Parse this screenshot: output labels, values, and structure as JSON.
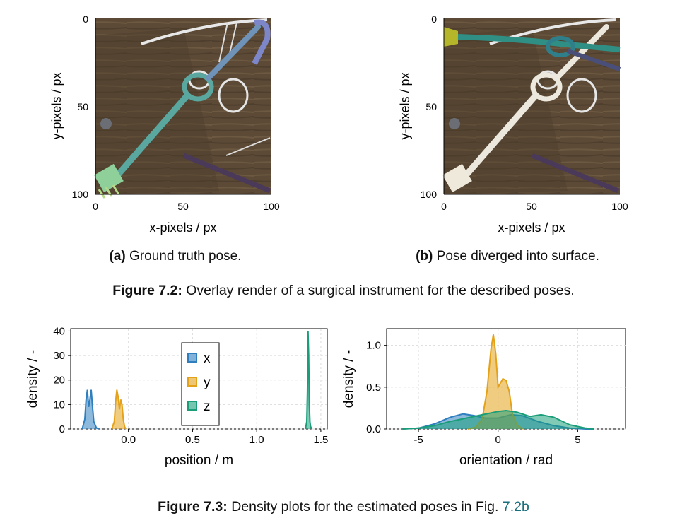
{
  "figure72": {
    "subfig_a": {
      "yticks": [
        "0",
        "50",
        "100"
      ],
      "xticks": [
        "0",
        "50",
        "100"
      ],
      "ylabel": "y-pixels / px",
      "xlabel": "x-pixels / px",
      "caption_tag": "(a)",
      "caption_text": "Ground truth pose."
    },
    "subfig_b": {
      "yticks": [
        "0",
        "50",
        "100"
      ],
      "xticks": [
        "0",
        "50",
        "100"
      ],
      "ylabel": "y-pixels / px",
      "xlabel": "x-pixels / px",
      "caption_tag": "(b)",
      "caption_text": "Pose diverged into surface."
    },
    "caption_label": "Figure 7.2:",
    "caption_text": "Overlay render of a surgical instrument for the described poses."
  },
  "figure73": {
    "caption_label": "Figure 7.3:",
    "caption_text": "Density plots for the estimated poses in Fig.",
    "caption_ref": "7.2b"
  },
  "colors": {
    "x": "#2f7fbf",
    "y": "#e3a21a",
    "z": "#1a9e7a"
  },
  "chart_data": [
    {
      "type": "area",
      "xlabel": "position / m",
      "ylabel": "density / -",
      "xlim": [
        -0.45,
        1.55
      ],
      "ylim": [
        0,
        41
      ],
      "xticks": [
        "0.0",
        "0.5",
        "1.0",
        "1.5"
      ],
      "yticks": [
        "0",
        "10",
        "20",
        "30",
        "40"
      ],
      "grid": true,
      "legend": "center-left",
      "series": [
        {
          "name": "x",
          "x": [
            -0.36,
            -0.34,
            -0.33,
            -0.32,
            -0.31,
            -0.3,
            -0.29,
            -0.28,
            -0.27,
            -0.25,
            -0.23
          ],
          "values": [
            0,
            4,
            12,
            16,
            9,
            12,
            16,
            9,
            3,
            0.5,
            0
          ]
        },
        {
          "name": "y",
          "x": [
            -0.13,
            -0.11,
            -0.1,
            -0.09,
            -0.08,
            -0.07,
            -0.06,
            -0.05,
            -0.04,
            -0.03,
            -0.02
          ],
          "values": [
            0,
            3,
            11,
            16,
            13,
            8,
            12,
            10,
            4,
            1,
            0
          ]
        },
        {
          "name": "z",
          "x": [
            1.38,
            1.39,
            1.395,
            1.4,
            1.405,
            1.41,
            1.415,
            1.42,
            1.43
          ],
          "values": [
            0,
            3,
            15,
            40,
            30,
            10,
            3,
            1,
            0
          ]
        }
      ]
    },
    {
      "type": "area",
      "xlabel": "orientation / rad",
      "ylabel": "density / -",
      "xlim": [
        -7,
        8
      ],
      "ylim": [
        0,
        1.2
      ],
      "xticks": [
        "-5",
        "0",
        "5"
      ],
      "yticks": [
        "0.0",
        "0.5",
        "1.0"
      ],
      "grid": true,
      "series": [
        {
          "name": "x",
          "x": [
            -6,
            -5,
            -4,
            -3,
            -2.2,
            -1.5,
            -0.8,
            0,
            0.8,
            1.5,
            2.5,
            3.5,
            4.5,
            5.5,
            6
          ],
          "values": [
            0,
            0.01,
            0.06,
            0.14,
            0.18,
            0.16,
            0.13,
            0.13,
            0.17,
            0.16,
            0.09,
            0.04,
            0.01,
            0,
            0
          ]
        },
        {
          "name": "y",
          "x": [
            -1.9,
            -1.4,
            -1.0,
            -0.7,
            -0.45,
            -0.3,
            -0.15,
            0,
            0.15,
            0.3,
            0.5,
            0.7,
            0.9,
            1.2,
            1.6
          ],
          "values": [
            0,
            0.02,
            0.12,
            0.45,
            0.95,
            1.13,
            0.9,
            0.5,
            0.55,
            0.6,
            0.58,
            0.45,
            0.18,
            0.04,
            0
          ]
        },
        {
          "name": "z",
          "x": [
            -6,
            -5,
            -4,
            -3,
            -2,
            -1,
            0,
            0.5,
            1.2,
            2,
            2.7,
            3.5,
            4.5,
            5.5,
            6
          ],
          "values": [
            0,
            0.01,
            0.04,
            0.09,
            0.13,
            0.17,
            0.21,
            0.22,
            0.2,
            0.15,
            0.17,
            0.14,
            0.05,
            0.01,
            0
          ]
        }
      ]
    }
  ]
}
